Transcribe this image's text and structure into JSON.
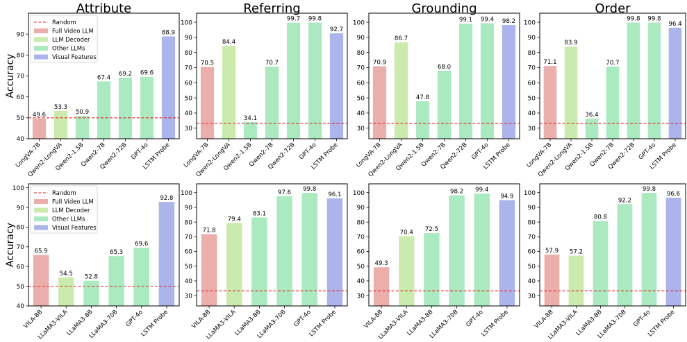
{
  "colors": {
    "full_video_llm": "#ebafab",
    "llm_decoder": "#cbeaad",
    "other_llms": "#abeac0",
    "visual_features": "#acb4ec",
    "random": "#e8211d"
  },
  "legend": {
    "random": "Random",
    "full_video_llm": "Full Video LLM",
    "llm_decoder": "LLM Decoder",
    "other_llms": "Other LLMs",
    "visual_features": "Visual Features"
  },
  "chart_data": [
    {
      "type": "bar",
      "row": 0,
      "col": 0,
      "title": "Attribute",
      "ylabel": "Accuracy",
      "ylim": [
        40,
        100
      ],
      "yticks": [
        40,
        50,
        60,
        70,
        80,
        90
      ],
      "random_baseline": 50,
      "legend": true,
      "categories": [
        "LongVA-7B",
        "Qwen2-LongVA",
        "Qwen2-1.5B",
        "Qwen2-7B",
        "Qwen2-72B",
        "GPT-4o",
        "LSTM Probe"
      ],
      "groups": [
        "full_video_llm",
        "llm_decoder",
        "other_llms",
        "other_llms",
        "other_llms",
        "other_llms",
        "visual_features"
      ],
      "values": [
        49.6,
        53.3,
        50.9,
        67.4,
        69.2,
        69.6,
        88.9
      ],
      "labels": [
        "49.6",
        "53.3",
        "50.9",
        "67.4",
        "69.2",
        "69.6",
        "88.9"
      ]
    },
    {
      "type": "bar",
      "row": 0,
      "col": 1,
      "title": "Referring",
      "ylabel": "",
      "ylim": [
        23,
        106
      ],
      "yticks": [
        30,
        40,
        50,
        60,
        70,
        80,
        90,
        100
      ],
      "random_baseline": 33.3,
      "legend": false,
      "categories": [
        "LongVA-7B",
        "Qwen2-LongVA",
        "Qwen2-1.5B",
        "Qwen2-7B",
        "Qwen2-72B",
        "GPT-4o",
        "LSTM Probe"
      ],
      "groups": [
        "full_video_llm",
        "llm_decoder",
        "other_llms",
        "other_llms",
        "other_llms",
        "other_llms",
        "visual_features"
      ],
      "values": [
        70.5,
        84.4,
        34.1,
        70.7,
        99.7,
        99.8,
        92.7
      ],
      "labels": [
        "70.5",
        "84.4",
        "34.1",
        "70.7",
        "99.7",
        "99.8",
        "92.7"
      ]
    },
    {
      "type": "bar",
      "row": 0,
      "col": 2,
      "title": "Grounding",
      "ylabel": "",
      "ylim": [
        23,
        106
      ],
      "yticks": [
        30,
        40,
        50,
        60,
        70,
        80,
        90,
        100
      ],
      "random_baseline": 33.3,
      "legend": false,
      "categories": [
        "LongVA-7B",
        "Qwen2-LongVA",
        "Qwen2-1.5B",
        "Qwen2-7B",
        "Qwen2-72B",
        "GPT-4o",
        "LSTM Probe"
      ],
      "groups": [
        "full_video_llm",
        "llm_decoder",
        "other_llms",
        "other_llms",
        "other_llms",
        "other_llms",
        "visual_features"
      ],
      "values": [
        70.9,
        86.7,
        47.8,
        68.0,
        99.1,
        99.4,
        98.2
      ],
      "labels": [
        "70.9",
        "86.7",
        "47.8",
        "68.0",
        "99.1",
        "99.4",
        "98.2"
      ]
    },
    {
      "type": "bar",
      "row": 0,
      "col": 3,
      "title": "Order",
      "ylabel": "",
      "ylim": [
        23,
        106
      ],
      "yticks": [
        30,
        40,
        50,
        60,
        70,
        80,
        90,
        100
      ],
      "random_baseline": 33.3,
      "legend": false,
      "categories": [
        "LongVA-7B",
        "Qwen2-LongVA",
        "Qwen2-1.5B",
        "Qwen2-7B",
        "Qwen2-72B",
        "GPT-4o",
        "LSTM Probe"
      ],
      "groups": [
        "full_video_llm",
        "llm_decoder",
        "other_llms",
        "other_llms",
        "other_llms",
        "other_llms",
        "visual_features"
      ],
      "values": [
        71.1,
        83.9,
        36.4,
        70.7,
        99.8,
        99.8,
        96.4
      ],
      "labels": [
        "71.1",
        "83.9",
        "36.4",
        "70.7",
        "99.8",
        "99.8",
        "96.4"
      ]
    },
    {
      "type": "bar",
      "row": 1,
      "col": 0,
      "title": "",
      "ylabel": "Accuracy",
      "ylim": [
        40,
        102
      ],
      "yticks": [
        40,
        50,
        60,
        70,
        80,
        90,
        100
      ],
      "random_baseline": 50,
      "legend": true,
      "categories": [
        "VILA-8B",
        "LLaMA3-VILA",
        "LLaMA3-8B",
        "LLaMA3-70B",
        "GPT-4o",
        "LSTM Probe"
      ],
      "groups": [
        "full_video_llm",
        "llm_decoder",
        "other_llms",
        "other_llms",
        "other_llms",
        "visual_features"
      ],
      "values": [
        65.9,
        54.5,
        52.8,
        65.3,
        69.6,
        92.8
      ],
      "labels": [
        "65.9",
        "54.5",
        "52.8",
        "65.3",
        "69.6",
        "92.8"
      ]
    },
    {
      "type": "bar",
      "row": 1,
      "col": 1,
      "title": "",
      "ylabel": "",
      "ylim": [
        23,
        106
      ],
      "yticks": [
        30,
        40,
        50,
        60,
        70,
        80,
        90,
        100
      ],
      "random_baseline": 33.3,
      "legend": false,
      "categories": [
        "VILA-8B",
        "LLaMA3-VILA",
        "LLaMA3-8B",
        "LLaMA3-70B",
        "GPT-4o",
        "LSTM Probe"
      ],
      "groups": [
        "full_video_llm",
        "llm_decoder",
        "other_llms",
        "other_llms",
        "other_llms",
        "visual_features"
      ],
      "values": [
        71.8,
        79.4,
        83.1,
        97.6,
        99.8,
        96.1
      ],
      "labels": [
        "71.8",
        "79.4",
        "83.1",
        "97.6",
        "99.8",
        "96.1"
      ]
    },
    {
      "type": "bar",
      "row": 1,
      "col": 2,
      "title": "",
      "ylabel": "",
      "ylim": [
        23,
        106
      ],
      "yticks": [
        30,
        40,
        50,
        60,
        70,
        80,
        90,
        100
      ],
      "random_baseline": 33.3,
      "legend": false,
      "categories": [
        "VILA-8B",
        "LLaMA3-VILA",
        "LLaMA3-8B",
        "LLaMA3-70B",
        "GPT-4o",
        "LSTM Probe"
      ],
      "groups": [
        "full_video_llm",
        "llm_decoder",
        "other_llms",
        "other_llms",
        "other_llms",
        "visual_features"
      ],
      "values": [
        49.3,
        70.4,
        72.5,
        98.2,
        99.4,
        94.9
      ],
      "labels": [
        "49.3",
        "70.4",
        "72.5",
        "98.2",
        "99.4",
        "94.9"
      ]
    },
    {
      "type": "bar",
      "row": 1,
      "col": 3,
      "title": "",
      "ylabel": "",
      "ylim": [
        23,
        106
      ],
      "yticks": [
        30,
        40,
        50,
        60,
        70,
        80,
        90,
        100
      ],
      "random_baseline": 33.3,
      "legend": false,
      "categories": [
        "VILA-8B",
        "LLaMA3-VILA",
        "LLaMA3-8B",
        "LLaMA3-70B",
        "GPT-4o",
        "LSTM Probe"
      ],
      "groups": [
        "full_video_llm",
        "llm_decoder",
        "other_llms",
        "other_llms",
        "other_llms",
        "visual_features"
      ],
      "values": [
        57.9,
        57.2,
        80.8,
        92.2,
        99.8,
        96.6
      ],
      "labels": [
        "57.9",
        "57.2",
        "80.8",
        "92.2",
        "99.8",
        "96.6"
      ]
    }
  ]
}
